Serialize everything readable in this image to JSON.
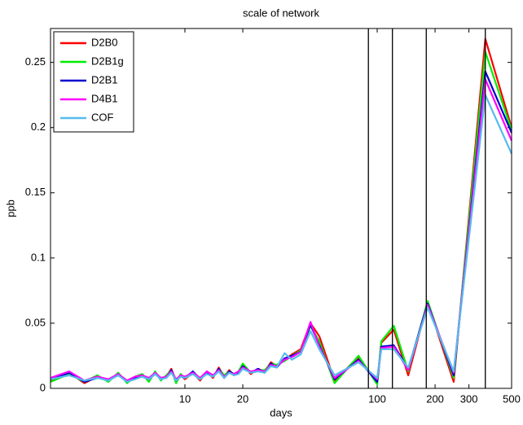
{
  "chart_data": {
    "type": "line",
    "title": "scale of network",
    "x_label": "days",
    "y_label": "ppb",
    "x_scale": "log",
    "xlim": [
      2,
      500
    ],
    "ylim": [
      0,
      0.276
    ],
    "xticks": [
      10,
      20,
      100,
      200,
      300,
      500
    ],
    "yticks": [
      0,
      0.05,
      0.1,
      0.15,
      0.2,
      0.25
    ],
    "legend": "upper left",
    "vlines": [
      90,
      120,
      180,
      365
    ],
    "vline_color": "#000000",
    "x": [
      2,
      2.5,
      3,
      3.5,
      4,
      4.5,
      5,
      5.5,
      6,
      6.5,
      7,
      7.5,
      8,
      8.5,
      9,
      9.5,
      10,
      11,
      12,
      13,
      14,
      15,
      16,
      17,
      18,
      19,
      20,
      22,
      24,
      26,
      28,
      30,
      33,
      36,
      40,
      45,
      50,
      60,
      80,
      100,
      105,
      122,
      145,
      183,
      250,
      365,
      500
    ],
    "series": [
      {
        "name": "D2B0",
        "color": "#ff0000",
        "values": [
          0.006,
          0.012,
          0.004,
          0.009,
          0.006,
          0.011,
          0.005,
          0.008,
          0.01,
          0.006,
          0.012,
          0.007,
          0.009,
          0.015,
          0.005,
          0.01,
          0.007,
          0.012,
          0.006,
          0.013,
          0.008,
          0.016,
          0.009,
          0.014,
          0.01,
          0.012,
          0.018,
          0.011,
          0.015,
          0.013,
          0.02,
          0.017,
          0.022,
          0.026,
          0.03,
          0.05,
          0.04,
          0.006,
          0.024,
          0.004,
          0.035,
          0.045,
          0.01,
          0.066,
          0.005,
          0.268,
          0.2
        ]
      },
      {
        "name": "D2B1g",
        "color": "#00ee00",
        "values": [
          0.005,
          0.011,
          0.005,
          0.01,
          0.005,
          0.012,
          0.004,
          0.009,
          0.011,
          0.005,
          0.013,
          0.006,
          0.01,
          0.014,
          0.004,
          0.011,
          0.008,
          0.011,
          0.007,
          0.012,
          0.009,
          0.015,
          0.01,
          0.013,
          0.011,
          0.013,
          0.019,
          0.012,
          0.014,
          0.014,
          0.019,
          0.018,
          0.021,
          0.025,
          0.029,
          0.048,
          0.036,
          0.004,
          0.025,
          0.003,
          0.036,
          0.048,
          0.013,
          0.067,
          0.008,
          0.258,
          0.198
        ]
      },
      {
        "name": "D2B1",
        "color": "#0000cc",
        "values": [
          0.007,
          0.012,
          0.005,
          0.008,
          0.007,
          0.01,
          0.006,
          0.008,
          0.009,
          0.007,
          0.011,
          0.008,
          0.008,
          0.014,
          0.006,
          0.009,
          0.008,
          0.013,
          0.007,
          0.012,
          0.009,
          0.015,
          0.008,
          0.013,
          0.011,
          0.012,
          0.017,
          0.012,
          0.015,
          0.012,
          0.019,
          0.016,
          0.023,
          0.025,
          0.028,
          0.049,
          0.033,
          0.007,
          0.022,
          0.005,
          0.032,
          0.033,
          0.015,
          0.065,
          0.01,
          0.243,
          0.196
        ]
      },
      {
        "name": "D4B1",
        "color": "#ff00ff",
        "values": [
          0.008,
          0.013,
          0.006,
          0.009,
          0.007,
          0.011,
          0.006,
          0.009,
          0.01,
          0.008,
          0.012,
          0.008,
          0.009,
          0.013,
          0.007,
          0.01,
          0.009,
          0.012,
          0.008,
          0.013,
          0.01,
          0.014,
          0.009,
          0.012,
          0.011,
          0.013,
          0.016,
          0.013,
          0.014,
          0.013,
          0.018,
          0.017,
          0.022,
          0.024,
          0.028,
          0.051,
          0.032,
          0.008,
          0.021,
          0.007,
          0.031,
          0.032,
          0.014,
          0.064,
          0.012,
          0.237,
          0.19
        ]
      },
      {
        "name": "COF",
        "color": "#55bbee",
        "values": [
          0.007,
          0.01,
          0.006,
          0.008,
          0.006,
          0.01,
          0.005,
          0.007,
          0.009,
          0.007,
          0.011,
          0.007,
          0.008,
          0.012,
          0.006,
          0.009,
          0.008,
          0.011,
          0.007,
          0.011,
          0.009,
          0.013,
          0.008,
          0.012,
          0.01,
          0.011,
          0.015,
          0.012,
          0.013,
          0.012,
          0.017,
          0.016,
          0.027,
          0.022,
          0.026,
          0.044,
          0.03,
          0.01,
          0.02,
          0.008,
          0.03,
          0.03,
          0.016,
          0.062,
          0.013,
          0.225,
          0.18
        ]
      }
    ]
  }
}
